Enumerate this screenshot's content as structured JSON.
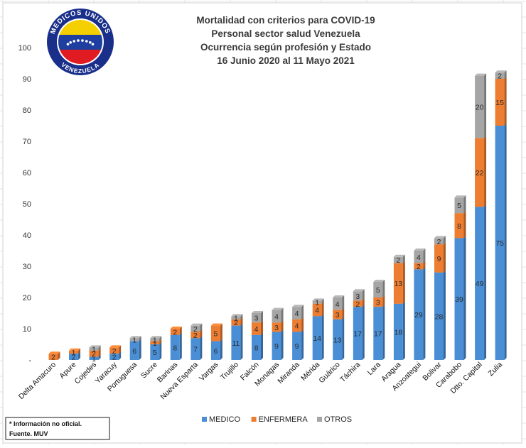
{
  "chart_data": {
    "type": "bar",
    "stacked": true,
    "title_lines": [
      "Mortalidad con criterios para COVID-19",
      "Personal sector salud Venezuela",
      "Ocurrencia según profesión y Estado",
      "16 Junio 2020 al 11 Mayo 2021"
    ],
    "ylim": [
      0,
      100
    ],
    "yticks": [
      0,
      10,
      20,
      30,
      40,
      50,
      60,
      70,
      80,
      90,
      100
    ],
    "yticks_text": [
      "-",
      "10",
      "20",
      "30",
      "40",
      "50",
      "60",
      "70",
      "80",
      "90",
      "100"
    ],
    "grid": false,
    "legend_position": "bottom",
    "categories": [
      "Delta Amacuro",
      "Apure",
      "Cojedes",
      "Yaracuy",
      "Portuguesa",
      "Sucre",
      "Barinas",
      "Nueva Esparta",
      "Vargas",
      "Trujillo",
      "Falcón",
      "Monagas",
      "Miranda",
      "Mérida",
      "Guárico",
      "Táchira",
      "Lara",
      "Aragua",
      "Anzoategui",
      "Bolivar",
      "Carabobo",
      "Dtto. Capital",
      "Zulia"
    ],
    "series": [
      {
        "name": "MEDICO",
        "color": "#4a8fd6",
        "values": [
          0,
          2,
          1,
          2,
          6,
          5,
          8,
          7,
          6,
          11,
          8,
          9,
          9,
          14,
          13,
          17,
          17,
          18,
          29,
          28,
          39,
          49,
          75
        ]
      },
      {
        "name": "ENFERMERA",
        "color": "#ed7d31",
        "values": [
          2,
          1,
          2,
          2,
          0,
          1,
          2,
          2,
          5,
          2,
          4,
          3,
          4,
          4,
          3,
          2,
          3,
          13,
          2,
          9,
          8,
          22,
          15
        ]
      },
      {
        "name": "OTROS",
        "color": "#a5a5a5",
        "values": [
          0,
          0,
          1,
          0,
          1,
          1,
          0,
          2,
          0,
          1,
          3,
          4,
          4,
          1,
          4,
          3,
          5,
          2,
          4,
          2,
          5,
          20,
          2
        ]
      }
    ]
  },
  "logo": {
    "top_text": "MEDICOS UNIDOS",
    "bottom_text": "VENEZUELA",
    "colors": {
      "yellow": "#f5d000",
      "blue": "#1f3fa0",
      "red": "#e01b22",
      "ring": "#1a2f8a"
    }
  },
  "footnote": {
    "note": "* Información no oficial.",
    "source": "Fuente. MUV"
  }
}
